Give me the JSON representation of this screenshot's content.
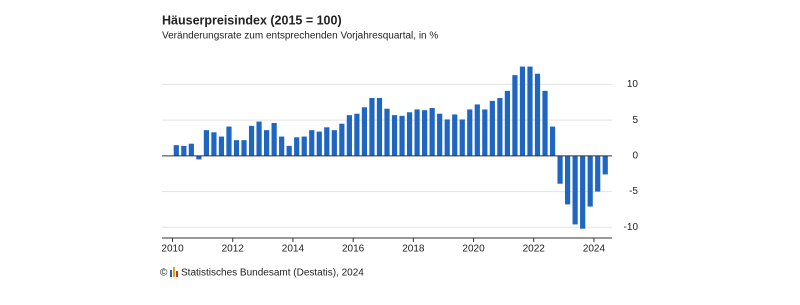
{
  "chart_data": {
    "type": "bar",
    "title": "Häuserpreisindex (2015 = 100)",
    "subtitle": "Veränderungsrate zum entsprechenden Vorjahresquartal, in %",
    "copyright": "©",
    "source": "Statistisches Bundesamt (Destatis), 2024",
    "color": "#1f66c2",
    "x": [
      2010.125,
      2010.375,
      2010.625,
      2010.875,
      2011.125,
      2011.375,
      2011.625,
      2011.875,
      2012.125,
      2012.375,
      2012.625,
      2012.875,
      2013.125,
      2013.375,
      2013.625,
      2013.875,
      2014.125,
      2014.375,
      2014.625,
      2014.875,
      2015.125,
      2015.375,
      2015.625,
      2015.875,
      2016.125,
      2016.375,
      2016.625,
      2016.875,
      2017.125,
      2017.375,
      2017.625,
      2017.875,
      2018.125,
      2018.375,
      2018.625,
      2018.875,
      2019.125,
      2019.375,
      2019.625,
      2019.875,
      2020.125,
      2020.375,
      2020.625,
      2020.875,
      2021.125,
      2021.375,
      2021.625,
      2021.875,
      2022.125,
      2022.375,
      2022.625,
      2022.875,
      2023.125,
      2023.375,
      2023.625,
      2023.875,
      2024.125,
      2024.375
    ],
    "values": [
      1.5,
      1.4,
      1.7,
      -0.5,
      3.6,
      3.3,
      2.7,
      4.1,
      2.2,
      2.2,
      4.2,
      4.8,
      3.6,
      4.6,
      2.7,
      1.4,
      2.6,
      2.7,
      3.6,
      3.4,
      4.0,
      3.6,
      4.5,
      5.7,
      5.9,
      6.8,
      8.1,
      8.1,
      6.6,
      5.7,
      5.6,
      6.1,
      6.5,
      6.4,
      6.7,
      5.9,
      5.1,
      5.8,
      5.1,
      6.5,
      7.2,
      6.5,
      7.7,
      8.1,
      9.1,
      11.3,
      12.5,
      12.5,
      11.5,
      9.1,
      4.1,
      -3.9,
      -6.8,
      -9.6,
      -10.2,
      -7.1,
      -5.0,
      -2.6
    ],
    "xlim": [
      2009.65,
      2024.6
    ],
    "xticks": [
      2010,
      2012,
      2014,
      2016,
      2018,
      2020,
      2022,
      2024
    ],
    "ylim": [
      -11.5,
      13
    ],
    "yticks": [
      -10,
      -5,
      0,
      5,
      10
    ],
    "grid": true
  }
}
